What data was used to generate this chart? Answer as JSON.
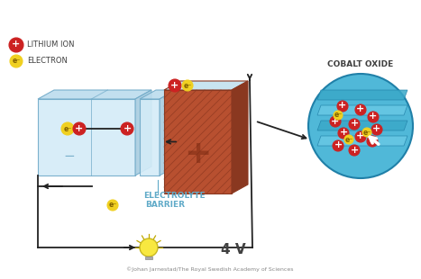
{
  "bg_color": "#ffffff",
  "label_lithium_ion": "LITHIUM ION",
  "label_electron": "ELECTRON",
  "label_voltage": "4 V",
  "label_electrolyte": "ELECTROLYTE",
  "label_barrier": "BARRIER",
  "label_cobalt": "COBALT OXIDE",
  "label_copyright": "©Johan Jarnestad/The Royal Swedish Academy of Sciences",
  "color_red": "#cc2222",
  "color_yellow": "#f0d020",
  "color_blue_light": "#cce8f4",
  "color_blue_mid": "#a8d4e8",
  "color_blue_border": "#70aac8",
  "color_cobalt_bg": "#50b8d8",
  "color_cobalt_layer1": "#68c8e4",
  "color_cobalt_layer2": "#3aa8c8",
  "color_brown_front": "#b85030",
  "color_brown_side": "#8a3820",
  "color_brown_top": "#c8e4f0",
  "color_label_blue": "#60aac8",
  "color_text": "#404040",
  "color_wire": "#222222",
  "wire_lw": 1.3
}
